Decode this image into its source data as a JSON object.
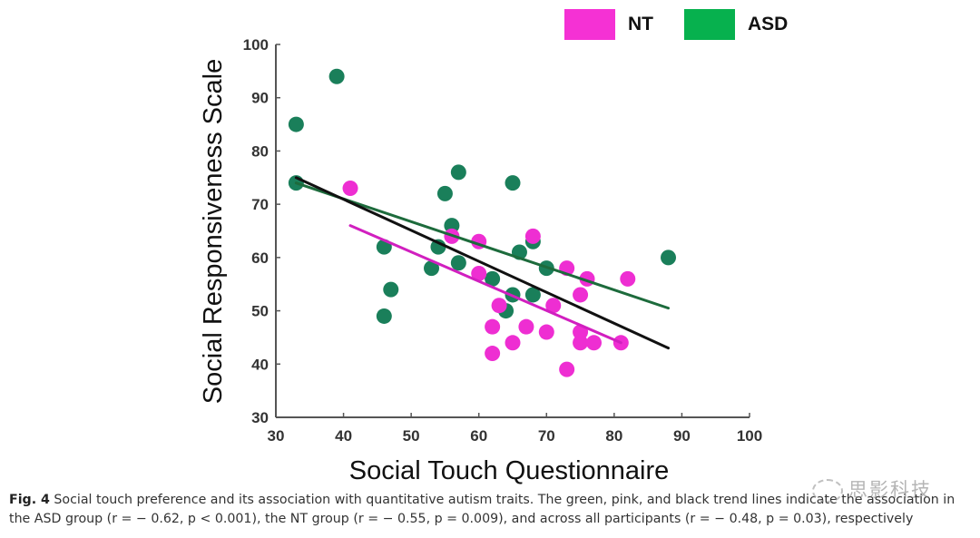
{
  "chart_data": {
    "type": "scatter",
    "title": "",
    "xlabel": "Social Touch Questionnaire",
    "ylabel": "Social Responsiveness Scale",
    "xlim": [
      30,
      100
    ],
    "ylim": [
      30,
      100
    ],
    "xticks": [
      30,
      40,
      50,
      60,
      70,
      80,
      90,
      100
    ],
    "yticks": [
      30,
      40,
      50,
      60,
      70,
      80,
      90,
      100
    ],
    "grid": false,
    "legend_position": "top-right",
    "series": [
      {
        "name": "NT",
        "color": "#ee2ed2",
        "points": [
          [
            41,
            73
          ],
          [
            56,
            64
          ],
          [
            60,
            63
          ],
          [
            60,
            57
          ],
          [
            63,
            51
          ],
          [
            62,
            47
          ],
          [
            62,
            42
          ],
          [
            65,
            44
          ],
          [
            67,
            47
          ],
          [
            68,
            64
          ],
          [
            70,
            46
          ],
          [
            71,
            51
          ],
          [
            73,
            58
          ],
          [
            73,
            39
          ],
          [
            75,
            53
          ],
          [
            75,
            46
          ],
          [
            75,
            44
          ],
          [
            76,
            56
          ],
          [
            77,
            44
          ],
          [
            81,
            44
          ],
          [
            82,
            56
          ]
        ]
      },
      {
        "name": "ASD",
        "color": "#1a7f5a",
        "points": [
          [
            33,
            85
          ],
          [
            39,
            94
          ],
          [
            33,
            74
          ],
          [
            46,
            62
          ],
          [
            46,
            49
          ],
          [
            47,
            54
          ],
          [
            53,
            58
          ],
          [
            54,
            62
          ],
          [
            55,
            72
          ],
          [
            56,
            66
          ],
          [
            57,
            76
          ],
          [
            57,
            59
          ],
          [
            62,
            56
          ],
          [
            64,
            50
          ],
          [
            65,
            53
          ],
          [
            65,
            74
          ],
          [
            66,
            61
          ],
          [
            68,
            63
          ],
          [
            68,
            53
          ],
          [
            70,
            58
          ],
          [
            88,
            60
          ]
        ]
      }
    ],
    "trend_lines": [
      {
        "name": "ASD trend",
        "color": "#1d6b3c",
        "x": [
          33,
          88
        ],
        "y": [
          74,
          50.5
        ]
      },
      {
        "name": "NT trend",
        "color": "#d11fbf",
        "x": [
          41,
          81
        ],
        "y": [
          66,
          44
        ]
      },
      {
        "name": "All participants trend",
        "color": "#111111",
        "x": [
          33,
          88
        ],
        "y": [
          75,
          43
        ]
      }
    ]
  },
  "legend": [
    {
      "label": "NT",
      "color": "#f531d4"
    },
    {
      "label": "ASD",
      "color": "#07b14e"
    }
  ],
  "caption": {
    "fig_label": "Fig. 4",
    "text_line1": " Social touch preference and its association with quantitative autism traits. The green, pink, and black trend lines indicate the association in",
    "text_line2": "the ASD group (r = − 0.62, p < 0.001), the NT group (r = − 0.55, p = 0.009), and across all participants (r = − 0.48, p = 0.03), respectively"
  },
  "watermark": "思影科技"
}
